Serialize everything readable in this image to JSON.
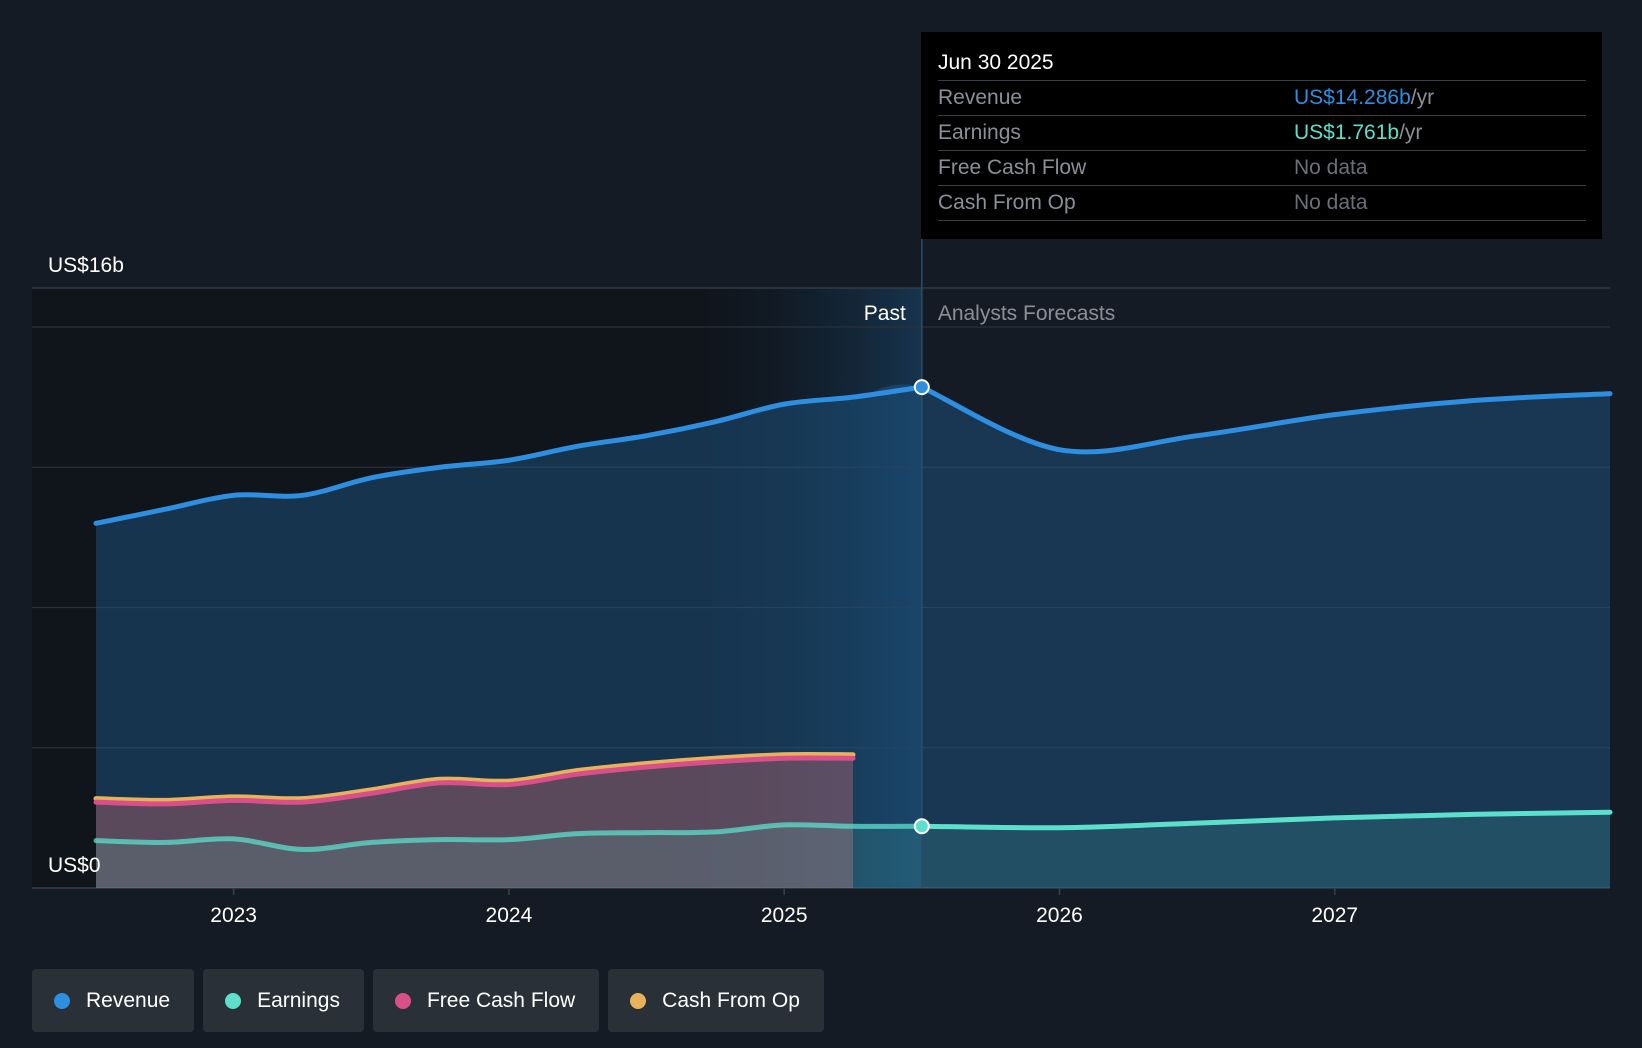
{
  "chart_data": {
    "type": "area",
    "y_top_label": "US$16b",
    "y_zero_label": "US$0",
    "ylim": [
      0,
      16
    ],
    "xlim": [
      2022.5,
      2028.0
    ],
    "x_ticks": [
      {
        "label": "2023",
        "value": 2023.0
      },
      {
        "label": "2024",
        "value": 2024.0
      },
      {
        "label": "2025",
        "value": 2025.0
      },
      {
        "label": "2026",
        "value": 2026.0
      },
      {
        "label": "2027",
        "value": 2027.0
      }
    ],
    "past_label": "Past",
    "forecast_label": "Analysts Forecasts",
    "divider_x": 2025.5,
    "shade_start_x": 2024.5,
    "series": [
      {
        "name": "Revenue",
        "color": "#2e8ee0",
        "x": [
          2022.5,
          2022.75,
          2023.0,
          2023.25,
          2023.5,
          2023.75,
          2024.0,
          2024.25,
          2024.5,
          2024.75,
          2025.0,
          2025.25,
          2025.5
        ],
        "values": [
          10.4,
          10.8,
          11.2,
          11.2,
          11.7,
          12.0,
          12.2,
          12.6,
          12.9,
          13.3,
          13.8,
          14.0,
          14.286
        ],
        "forecast_x": [
          2025.5,
          2026.0,
          2026.5,
          2027.0,
          2027.5,
          2028.0
        ],
        "forecast_values": [
          14.286,
          12.5,
          12.9,
          13.5,
          13.9,
          14.1
        ]
      },
      {
        "name": "Earnings",
        "color": "#5ce0cc",
        "x": [
          2022.5,
          2022.75,
          2023.0,
          2023.25,
          2023.5,
          2023.75,
          2024.0,
          2024.25,
          2024.5,
          2024.75,
          2025.0,
          2025.25,
          2025.5
        ],
        "values": [
          1.35,
          1.3,
          1.4,
          1.1,
          1.3,
          1.38,
          1.38,
          1.55,
          1.58,
          1.6,
          1.8,
          1.76,
          1.761
        ],
        "forecast_x": [
          2025.5,
          2026.0,
          2026.5,
          2027.0,
          2027.5,
          2028.0
        ],
        "forecast_values": [
          1.761,
          1.72,
          1.85,
          2.0,
          2.1,
          2.16
        ]
      },
      {
        "name": "Free Cash Flow",
        "color": "#d94f8a",
        "x": [
          2022.5,
          2022.75,
          2023.0,
          2023.25,
          2023.5,
          2023.75,
          2024.0,
          2024.25,
          2024.5,
          2024.75,
          2025.0,
          2025.25
        ],
        "values": [
          2.45,
          2.4,
          2.5,
          2.45,
          2.7,
          3.0,
          2.95,
          3.25,
          3.45,
          3.6,
          3.7,
          3.7
        ]
      },
      {
        "name": "Cash From Op",
        "color": "#e8b25c",
        "x": [
          2022.5,
          2022.75,
          2023.0,
          2023.25,
          2023.5,
          2023.75,
          2024.0,
          2024.25,
          2024.5,
          2024.75,
          2025.0,
          2025.25
        ],
        "values": [
          2.55,
          2.5,
          2.6,
          2.55,
          2.8,
          3.1,
          3.05,
          3.35,
          3.55,
          3.7,
          3.8,
          3.8
        ]
      }
    ]
  },
  "tooltip": {
    "date": "Jun 30 2025",
    "rows": [
      {
        "label": "Revenue",
        "value": "US$14.286b",
        "unit": " /yr",
        "color": "#2e8ee0"
      },
      {
        "label": "Earnings",
        "value": "US$1.761b",
        "unit": " /yr",
        "color": "#5ce0cc"
      },
      {
        "label": "Free Cash Flow",
        "value": "No data",
        "unit": "",
        "color": "#6b7078"
      },
      {
        "label": "Cash From Op",
        "value": "No data",
        "unit": "",
        "color": "#6b7078"
      }
    ]
  },
  "legend": [
    {
      "label": "Revenue",
      "color": "#2e8ee0"
    },
    {
      "label": "Earnings",
      "color": "#5ce0cc"
    },
    {
      "label": "Free Cash Flow",
      "color": "#d94f8a"
    },
    {
      "label": "Cash From Op",
      "color": "#e8b25c"
    }
  ]
}
